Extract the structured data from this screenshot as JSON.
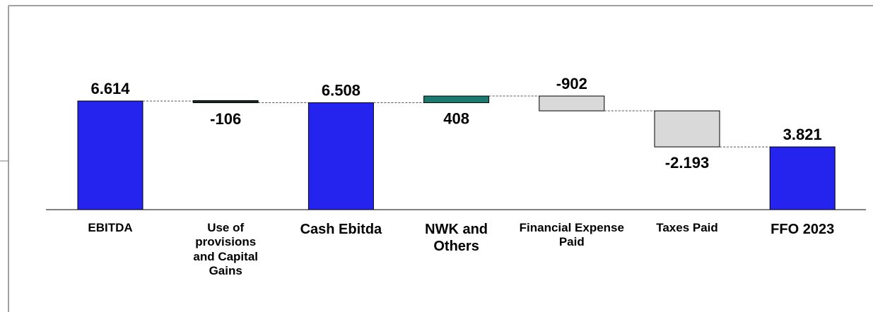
{
  "chart_data": {
    "type": "waterfall",
    "categories": [
      "EBITDA",
      "Use of provisions and Capital Gains",
      "Cash Ebitda",
      "NWK and Others",
      "Financial Expense Paid",
      "Taxes Paid",
      "FFO 2023"
    ],
    "values": [
      6614,
      -106,
      6508,
      408,
      -902,
      -2193,
      3821
    ],
    "value_labels": [
      "6.614",
      "-106",
      "6.508",
      "408",
      "-902",
      "-2.193",
      "3.821"
    ],
    "totals": [
      true,
      false,
      true,
      false,
      false,
      false,
      true
    ],
    "colors": [
      "#2424ee",
      "#1a2a2a",
      "#2424ee",
      "#1a7a70",
      "#d9d9d9",
      "#d9d9d9",
      "#2424ee"
    ],
    "ylim": [
      0,
      11000
    ]
  }
}
